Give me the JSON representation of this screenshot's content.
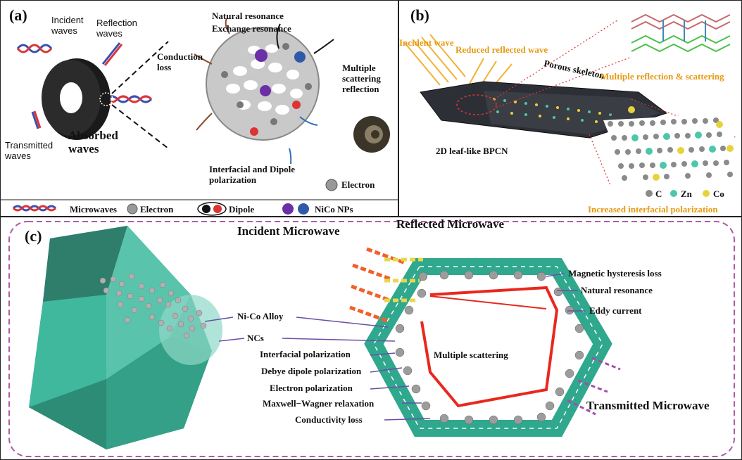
{
  "panel_a": {
    "tag": "(a)",
    "incident_waves": "Incident\nwaves",
    "reflection_waves": "Reflection\nwaves",
    "transmitted_waves": "Transmitted\nwaves",
    "absorbed_waves": "Absorbed\nwaves",
    "conduction_loss": "Conduction\nloss",
    "natural_resonance": "Natural resonance",
    "exchange_resonance": "Exchange resonance",
    "multiple_scattering": "Multiple\nscattering\nreflection",
    "interfacial_dipole": "Interfacial and Dipole\npolarization",
    "electron": "Electron",
    "legend": {
      "microwaves": "Microwaves",
      "electron": "Electron",
      "dipole": "Dipole",
      "nico": "NiCo NPs"
    }
  },
  "panel_b": {
    "tag": "(b)",
    "incident_wave": "Incident wave",
    "reduced_reflected": "Reduced reflected wave",
    "porous_skeleton": "Porous skeleton",
    "multiple_reflection": "Multiple reflection & scattering",
    "leaf_label": "2D leaf-like BPCN",
    "legend_c": "C",
    "legend_zn": "Zn",
    "legend_co": "Co",
    "interfacial": "Increased interfacial polarization"
  },
  "panel_c": {
    "tag": "(c)",
    "incident": "Incident Microwave",
    "reflected": "Reflected Microwave",
    "transmitted": "Transmitted Microwave",
    "multiple_scattering": "Multiple scattering",
    "left_labels": [
      "Ni-Co Alloy",
      "NCs",
      "Interfacial polarization",
      "Debye dipole polarization",
      "Electron polarization",
      "Maxwell−Wagner relaxation",
      "Conductivity loss"
    ],
    "right_labels": [
      "Magnetic hysteresis loss",
      "Natural resonance",
      "Eddy current"
    ]
  },
  "colors": {
    "teal": "#3fb8a0",
    "orange": "#e69a12",
    "red": "#e8281f",
    "purple": "#8a3fa3",
    "dashed_border": "#b05aa8"
  }
}
